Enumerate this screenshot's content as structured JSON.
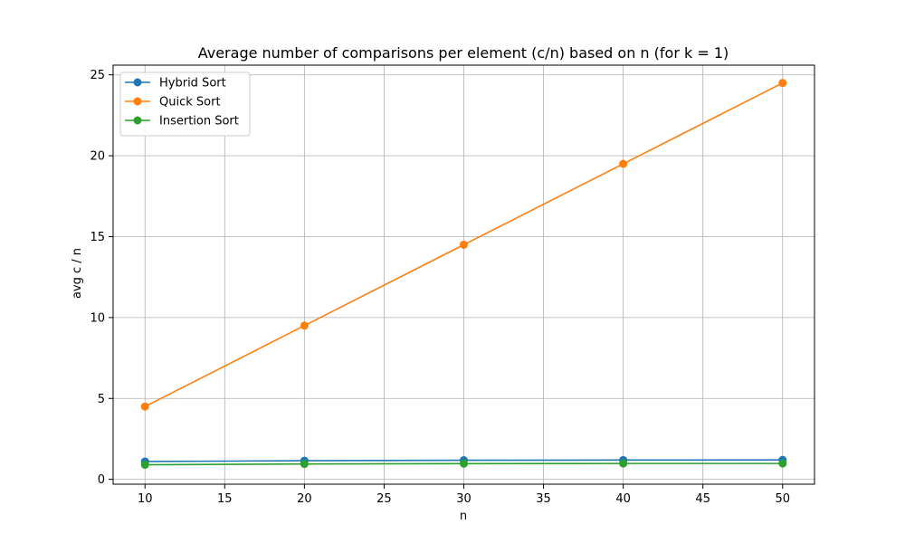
{
  "chart_data": {
    "type": "line",
    "title": "Average number of comparisons per element (c/n) based on n (for k = 1)",
    "xlabel": "n",
    "ylabel": "avg c / n",
    "x": [
      10,
      20,
      30,
      40,
      50
    ],
    "xlim": [
      8,
      52
    ],
    "ylim": [
      -0.3,
      25.6
    ],
    "xticks": [
      10,
      15,
      20,
      25,
      30,
      35,
      40,
      45,
      50
    ],
    "yticks": [
      0,
      5,
      10,
      15,
      20,
      25
    ],
    "grid": true,
    "legend_position": "top-left",
    "marker": "circle",
    "series": [
      {
        "name": "Hybrid Sort",
        "color": "#1f77b4",
        "values": [
          1.1,
          1.15,
          1.18,
          1.19,
          1.2
        ]
      },
      {
        "name": "Quick Sort",
        "color": "#ff7f0e",
        "values": [
          4.5,
          9.5,
          14.5,
          19.5,
          24.5
        ]
      },
      {
        "name": "Insertion Sort",
        "color": "#2ca02c",
        "values": [
          0.9,
          0.95,
          0.97,
          0.98,
          0.98
        ]
      }
    ]
  }
}
